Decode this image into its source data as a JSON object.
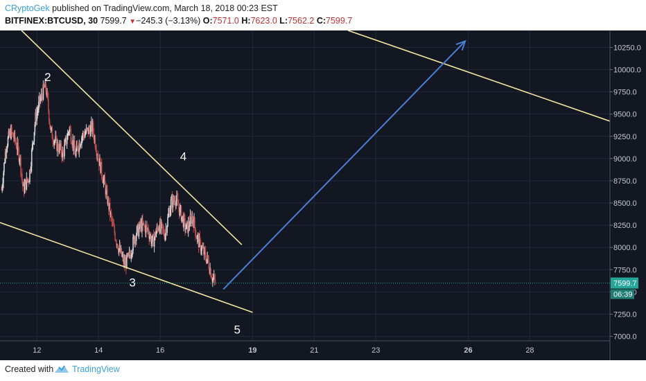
{
  "header": {
    "author": "CRyptoGek",
    "published_text": "published on TradingView.com, March 18, 2018 00:23 EST",
    "symbol": "BITFINEX:BTCUSD, 30",
    "last": "7599.7",
    "change": "−245.3 (−3.13%)",
    "o_label": "O:",
    "o_value": "7571.0",
    "h_label": "H:",
    "h_value": "7623.0",
    "l_label": "L:",
    "l_value": "7562.2",
    "c_label": "C:",
    "c_value": "7599.7"
  },
  "footer": {
    "created_with": "Created with",
    "brand": "TradingView"
  },
  "colors": {
    "background": "#131722",
    "grid": "#23283a",
    "candle_up": "#d6d6d6",
    "candle_down": "#b94a4a",
    "trendline": "#f0e6a0",
    "arrow": "#4a7fd8",
    "price_label": "#26a69a"
  },
  "chart_data": {
    "type": "candlestick",
    "x_axis": {
      "ticks": [
        "12",
        "14",
        "16",
        "19",
        "21",
        "23",
        "26",
        "28"
      ],
      "bold_ticks": [
        "19",
        "26"
      ]
    },
    "y_axis": {
      "ticks": [
        7000,
        7250,
        7500,
        7750,
        8000,
        8250,
        8500,
        8750,
        9000,
        9250,
        9500,
        9750,
        10000,
        10250
      ],
      "tick_labels": [
        "7000.0",
        "7250.0",
        "7500.0",
        "7750.0",
        "8000.0",
        "8250.0",
        "8500.0",
        "8750.0",
        "9000.0",
        "9250.0",
        "9500.0",
        "9750.0",
        "10000.0",
        "10250.0"
      ],
      "range": [
        6950,
        10440
      ]
    },
    "x_day_range": [
      10.8,
      30.6
    ],
    "last_price": {
      "value": 7599.7,
      "label": "7599.7",
      "countdown": "06:39"
    },
    "price_path": [
      {
        "day": 10.85,
        "price": 8650
      },
      {
        "day": 11.0,
        "price": 9150
      },
      {
        "day": 11.15,
        "price": 9300
      },
      {
        "day": 11.3,
        "price": 9200
      },
      {
        "day": 11.45,
        "price": 9000
      },
      {
        "day": 11.55,
        "price": 8650
      },
      {
        "day": 11.75,
        "price": 8800
      },
      {
        "day": 11.95,
        "price": 9450
      },
      {
        "day": 12.1,
        "price": 9650
      },
      {
        "day": 12.25,
        "price": 9800
      },
      {
        "day": 12.3,
        "price": 9780
      },
      {
        "day": 12.45,
        "price": 9300
      },
      {
        "day": 12.65,
        "price": 9150
      },
      {
        "day": 12.85,
        "price": 9050
      },
      {
        "day": 13.05,
        "price": 9350
      },
      {
        "day": 13.25,
        "price": 9050
      },
      {
        "day": 13.45,
        "price": 9250
      },
      {
        "day": 13.8,
        "price": 9350
      },
      {
        "day": 14.0,
        "price": 9000
      },
      {
        "day": 14.2,
        "price": 8700
      },
      {
        "day": 14.45,
        "price": 8250
      },
      {
        "day": 14.65,
        "price": 8000
      },
      {
        "day": 14.85,
        "price": 7800
      },
      {
        "day": 15.0,
        "price": 7900
      },
      {
        "day": 15.2,
        "price": 8150
      },
      {
        "day": 15.4,
        "price": 8250
      },
      {
        "day": 15.6,
        "price": 8200
      },
      {
        "day": 15.75,
        "price": 8050
      },
      {
        "day": 15.95,
        "price": 8250
      },
      {
        "day": 16.15,
        "price": 8150
      },
      {
        "day": 16.35,
        "price": 8500
      },
      {
        "day": 16.5,
        "price": 8550
      },
      {
        "day": 16.65,
        "price": 8400
      },
      {
        "day": 16.85,
        "price": 8200
      },
      {
        "day": 17.05,
        "price": 8350
      },
      {
        "day": 17.2,
        "price": 8100
      },
      {
        "day": 17.4,
        "price": 7950
      },
      {
        "day": 17.55,
        "price": 7850
      },
      {
        "day": 17.7,
        "price": 7650
      },
      {
        "day": 17.8,
        "price": 7600
      }
    ],
    "trendlines": [
      {
        "from": {
          "day": 11.5,
          "price": 10440
        },
        "to": {
          "day": 18.65,
          "price": 8030
        }
      },
      {
        "from": {
          "day": 10.8,
          "price": 8280
        },
        "to": {
          "day": 19.0,
          "price": 7270
        }
      },
      {
        "from": {
          "day": 22.1,
          "price": 10440
        },
        "to": {
          "day": 30.6,
          "price": 9420
        }
      }
    ],
    "arrow": {
      "from": {
        "day": 18.05,
        "price": 7530
      },
      "to": {
        "day": 25.9,
        "price": 10320
      }
    },
    "wave_labels": [
      {
        "label": "2",
        "day": 12.35,
        "price": 9870
      },
      {
        "label": "3",
        "day": 15.1,
        "price": 7560
      },
      {
        "label": "4",
        "day": 16.75,
        "price": 8980
      },
      {
        "label": "5",
        "day": 18.5,
        "price": 7030
      }
    ]
  }
}
